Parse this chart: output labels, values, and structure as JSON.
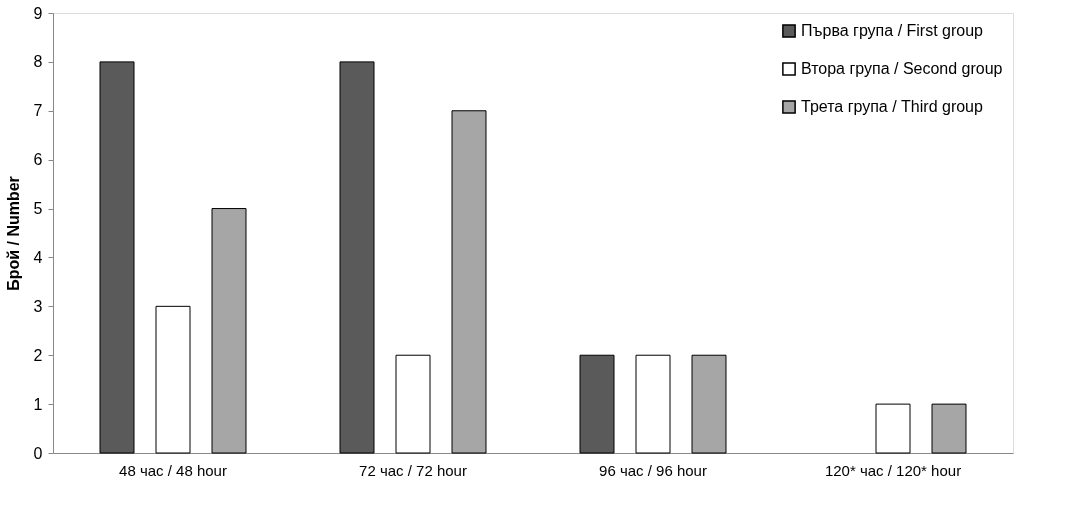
{
  "chart_data": {
    "type": "bar",
    "ylabel": "Брой / Number",
    "categories": [
      "48 час / 48 hour",
      "72 час / 72 hour",
      "96 час / 96 hour",
      "120* час / 120* hour"
    ],
    "series": [
      {
        "name": "Първа група / First group",
        "color": "#5a5a5a",
        "values": [
          8,
          8,
          2,
          null
        ]
      },
      {
        "name": "Втора група / Second group",
        "color": "#ffffff",
        "values": [
          3,
          2,
          2,
          1
        ]
      },
      {
        "name": "Трета група / Third group",
        "color": "#a6a6a6",
        "values": [
          5,
          7,
          2,
          1
        ]
      }
    ],
    "ylim": [
      0,
      9
    ],
    "yticks": [
      0,
      1,
      2,
      3,
      4,
      5,
      6,
      7,
      8,
      9
    ],
    "legend": "top right"
  }
}
